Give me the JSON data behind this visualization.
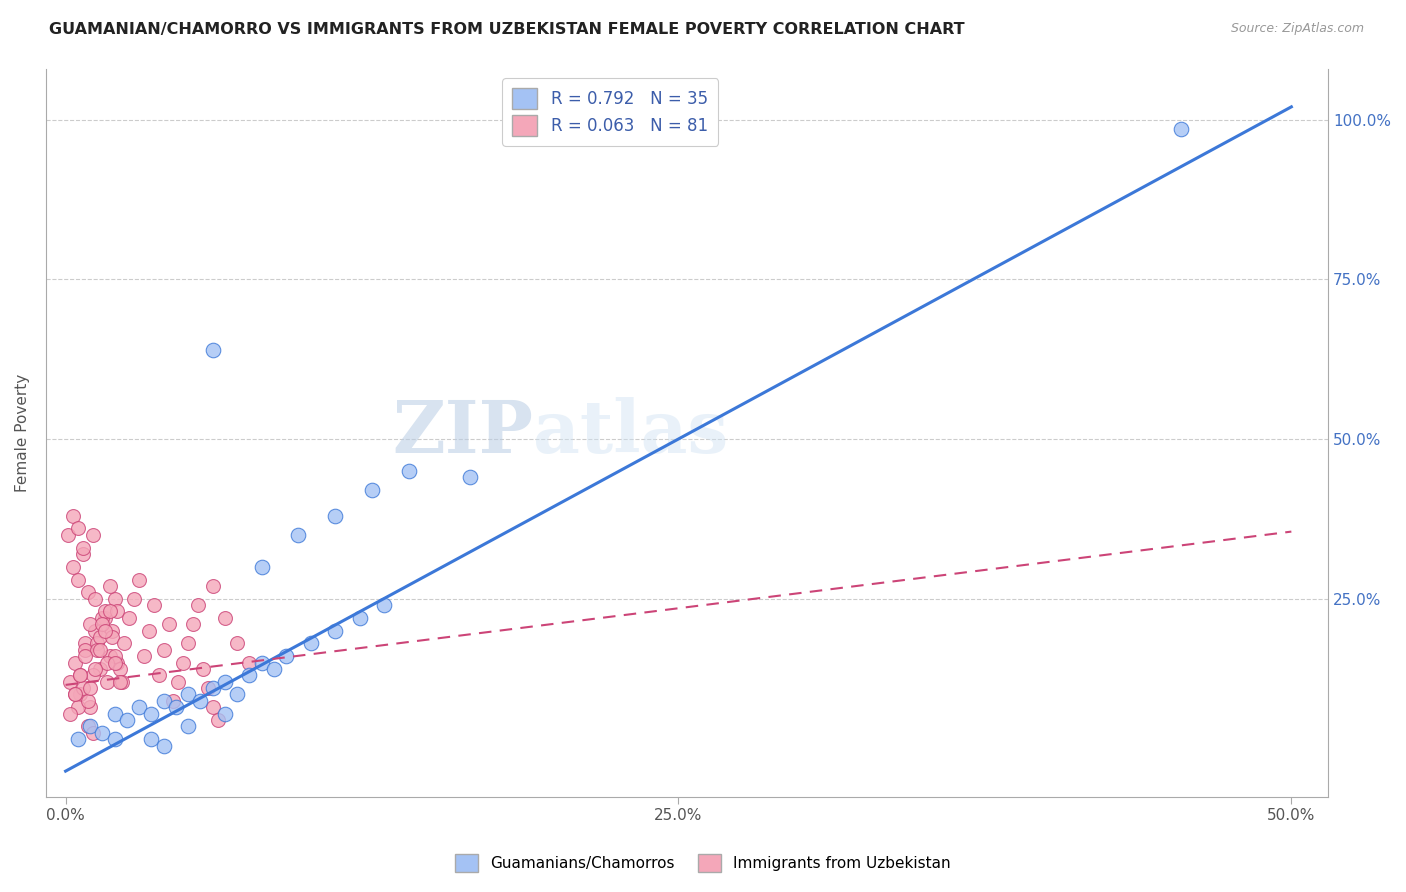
{
  "title": "GUAMANIAN/CHAMORRO VS IMMIGRANTS FROM UZBEKISTAN FEMALE POVERTY CORRELATION CHART",
  "source": "Source: ZipAtlas.com",
  "xlabel_ticks": [
    "0.0%",
    "25.0%",
    "50.0%"
  ],
  "xlabel_vals": [
    0.0,
    0.25,
    0.5
  ],
  "ylabel_ticks": [
    "25.0%",
    "50.0%",
    "75.0%",
    "100.0%"
  ],
  "ylabel_vals": [
    0.25,
    0.5,
    0.75,
    1.0
  ],
  "xmin": -0.008,
  "xmax": 0.515,
  "ymin": -0.06,
  "ymax": 1.08,
  "blue_R": 0.792,
  "blue_N": 35,
  "pink_R": 0.063,
  "pink_N": 81,
  "blue_color": "#a4c2f4",
  "pink_color": "#f4a7b9",
  "blue_line_color": "#3c78d8",
  "pink_line_color": "#cc4477",
  "watermark_zip": "ZIP",
  "watermark_atlas": "atlas",
  "legend_label_blue": "Guamanians/Chamorros",
  "legend_label_pink": "Immigrants from Uzbekistan",
  "blue_line_x0": 0.0,
  "blue_line_y0": -0.02,
  "blue_line_x1": 0.5,
  "blue_line_y1": 1.02,
  "pink_line_x0": 0.0,
  "pink_line_y0": 0.115,
  "pink_line_x1": 0.5,
  "pink_line_y1": 0.355,
  "blue_scatter_x": [
    0.005,
    0.01,
    0.015,
    0.02,
    0.025,
    0.03,
    0.035,
    0.04,
    0.045,
    0.05,
    0.055,
    0.06,
    0.065,
    0.07,
    0.075,
    0.08,
    0.085,
    0.09,
    0.1,
    0.11,
    0.12,
    0.13,
    0.035,
    0.05,
    0.065,
    0.08,
    0.095,
    0.11,
    0.125,
    0.14,
    0.02,
    0.04,
    0.06,
    0.165,
    0.455
  ],
  "blue_scatter_y": [
    0.03,
    0.05,
    0.04,
    0.07,
    0.06,
    0.08,
    0.07,
    0.09,
    0.08,
    0.1,
    0.09,
    0.11,
    0.12,
    0.1,
    0.13,
    0.15,
    0.14,
    0.16,
    0.18,
    0.2,
    0.22,
    0.24,
    0.03,
    0.05,
    0.07,
    0.3,
    0.35,
    0.38,
    0.42,
    0.45,
    0.03,
    0.02,
    0.64,
    0.44,
    0.985
  ],
  "pink_scatter_x": [
    0.002,
    0.004,
    0.006,
    0.008,
    0.01,
    0.012,
    0.014,
    0.016,
    0.018,
    0.02,
    0.003,
    0.005,
    0.007,
    0.009,
    0.011,
    0.013,
    0.015,
    0.017,
    0.019,
    0.021,
    0.004,
    0.006,
    0.008,
    0.01,
    0.012,
    0.014,
    0.016,
    0.018,
    0.02,
    0.022,
    0.005,
    0.007,
    0.009,
    0.011,
    0.013,
    0.015,
    0.017,
    0.019,
    0.021,
    0.023,
    0.002,
    0.004,
    0.006,
    0.008,
    0.01,
    0.012,
    0.014,
    0.016,
    0.018,
    0.02,
    0.022,
    0.024,
    0.026,
    0.028,
    0.03,
    0.032,
    0.034,
    0.036,
    0.038,
    0.04,
    0.042,
    0.044,
    0.046,
    0.048,
    0.05,
    0.052,
    0.054,
    0.056,
    0.058,
    0.06,
    0.062,
    0.001,
    0.003,
    0.005,
    0.007,
    0.009,
    0.011,
    0.06,
    0.065,
    0.07,
    0.075
  ],
  "pink_scatter_y": [
    0.12,
    0.15,
    0.1,
    0.18,
    0.08,
    0.2,
    0.14,
    0.22,
    0.16,
    0.25,
    0.3,
    0.28,
    0.32,
    0.26,
    0.35,
    0.18,
    0.22,
    0.12,
    0.2,
    0.15,
    0.1,
    0.13,
    0.17,
    0.21,
    0.25,
    0.19,
    0.23,
    0.27,
    0.16,
    0.14,
    0.08,
    0.11,
    0.09,
    0.13,
    0.17,
    0.21,
    0.15,
    0.19,
    0.23,
    0.12,
    0.07,
    0.1,
    0.13,
    0.16,
    0.11,
    0.14,
    0.17,
    0.2,
    0.23,
    0.15,
    0.12,
    0.18,
    0.22,
    0.25,
    0.28,
    0.16,
    0.2,
    0.24,
    0.13,
    0.17,
    0.21,
    0.09,
    0.12,
    0.15,
    0.18,
    0.21,
    0.24,
    0.14,
    0.11,
    0.08,
    0.06,
    0.35,
    0.38,
    0.36,
    0.33,
    0.05,
    0.04,
    0.27,
    0.22,
    0.18,
    0.15
  ]
}
